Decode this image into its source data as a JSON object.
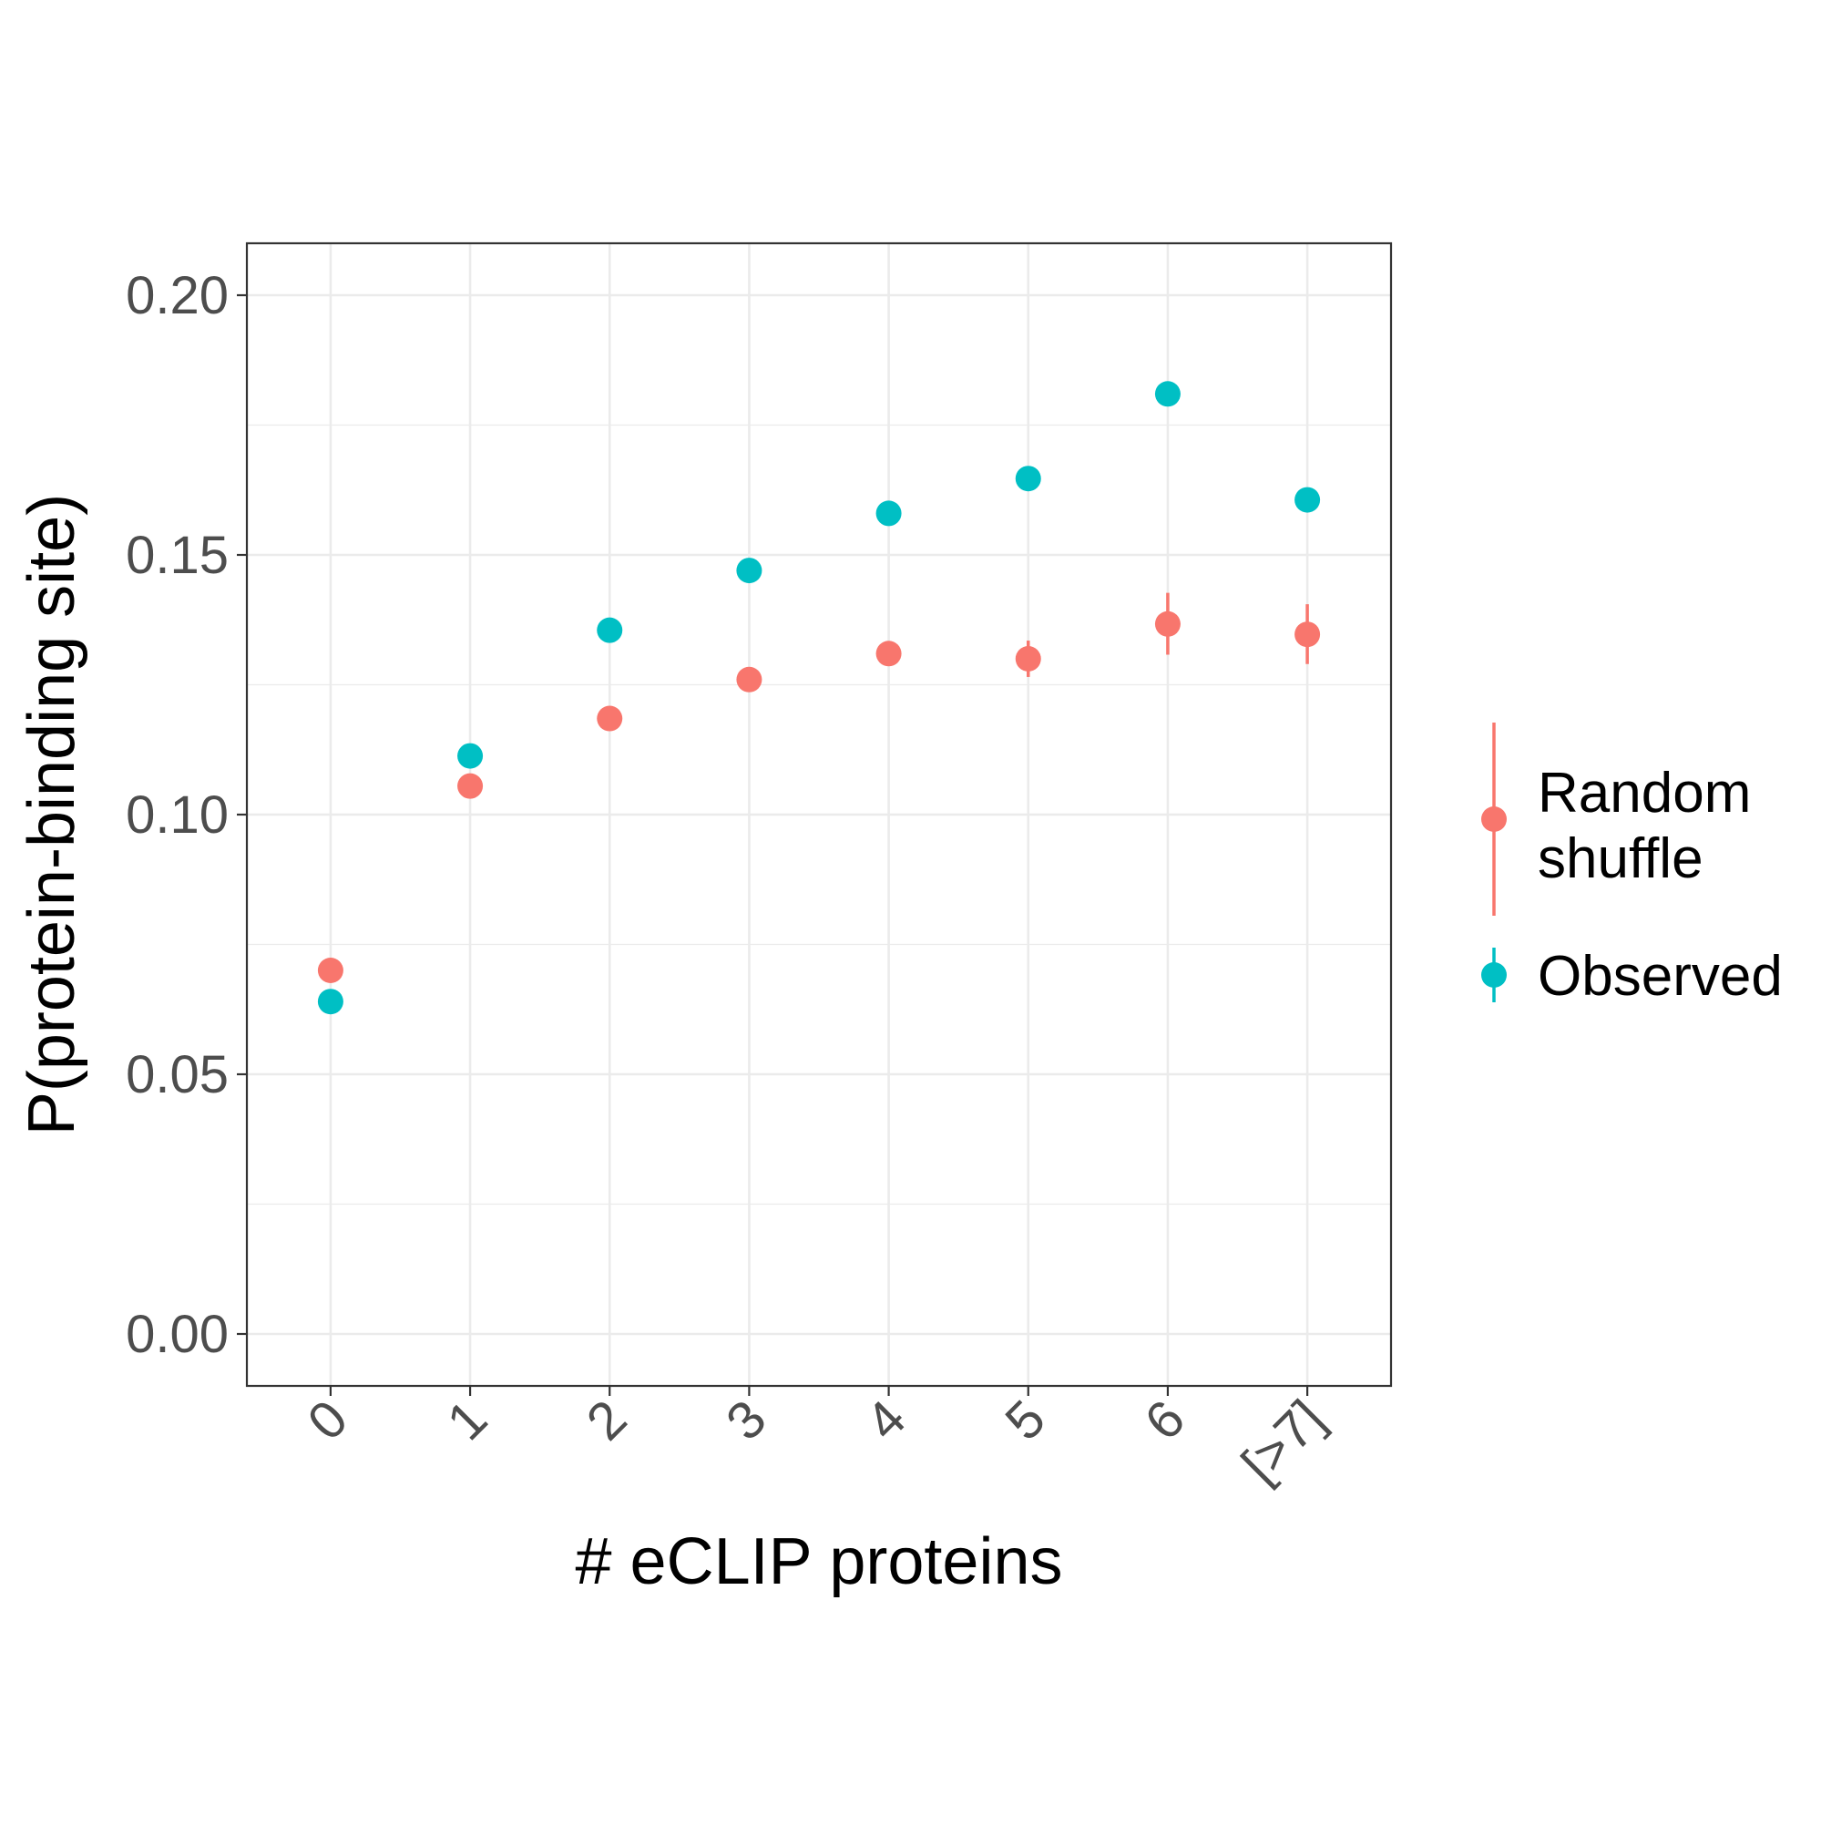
{
  "chart_data": {
    "type": "scatter",
    "title": "",
    "xlabel": "# eCLIP proteins",
    "ylabel": "P(protein-binding site)",
    "categories": [
      "0",
      "1",
      "2",
      "3",
      "4",
      "5",
      "6",
      "[>7]"
    ],
    "ylim": [
      -0.01,
      0.21
    ],
    "yticks": [
      "0.00",
      "0.05",
      "0.10",
      "0.15",
      "0.20"
    ],
    "grid": true,
    "legend_position": "right",
    "series": [
      {
        "name": "Random\nshuffle",
        "color": "#F8766D",
        "values": [
          0.07,
          0.1055,
          0.1185,
          0.126,
          0.131,
          0.13,
          0.1367,
          0.1347
        ],
        "err_low": [
          0.07,
          0.1055,
          0.1185,
          0.126,
          0.131,
          0.1265,
          0.1308,
          0.129
        ],
        "err_high": [
          0.07,
          0.1055,
          0.1185,
          0.126,
          0.131,
          0.1335,
          0.1427,
          0.1405
        ]
      },
      {
        "name": "Observed",
        "color": "#00BFC4",
        "values": [
          0.064,
          0.1113,
          0.1355,
          0.147,
          0.158,
          0.1647,
          0.181,
          0.1606
        ]
      }
    ]
  }
}
